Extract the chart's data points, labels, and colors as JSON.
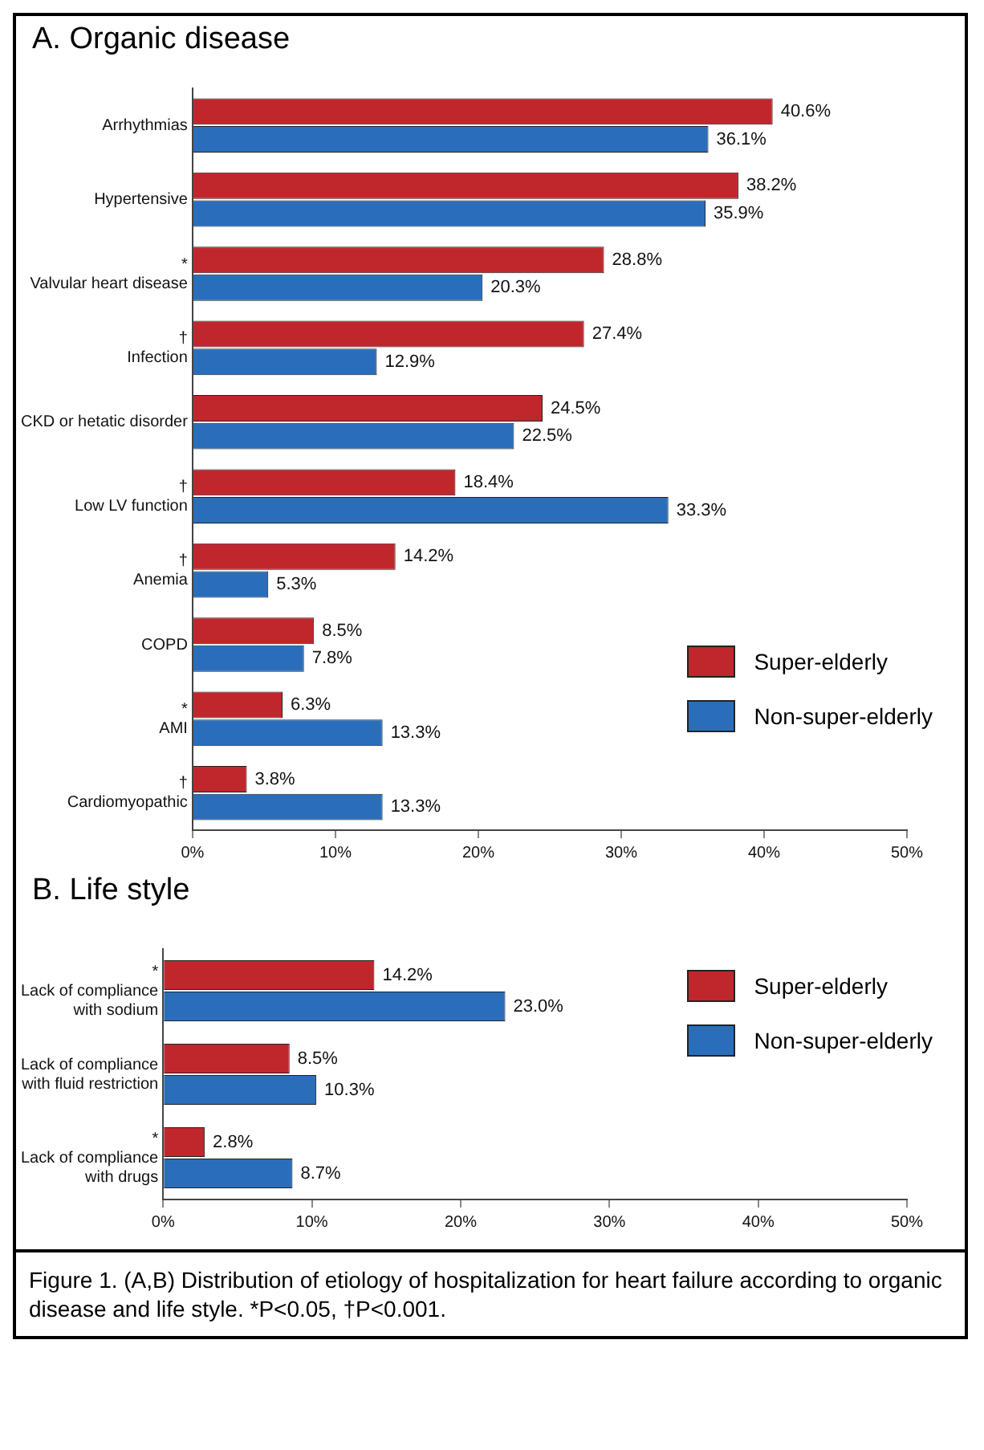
{
  "chart_data": [
    {
      "type": "bar",
      "title": "A. Organic disease",
      "orientation": "horizontal",
      "categories": [
        "Arrhythmias",
        "Hypertensive",
        "*\nValvular heart disease",
        "†\nInfection",
        "CKD or hetatic disorder",
        "†\nLow LV function",
        "†\nAnemia",
        "COPD",
        "*\nAMI",
        "†\nCardiomyopathic"
      ],
      "series": [
        {
          "name": "Super-elderly",
          "color": "#c0272d",
          "values": [
            40.6,
            38.2,
            28.8,
            27.4,
            24.5,
            18.4,
            14.2,
            8.5,
            6.3,
            3.8
          ],
          "value_labels": [
            "40.6%",
            "38.2%",
            "28.8%",
            "27.4%",
            "24.5%",
            "18.4%",
            "14.2%",
            "8.5%",
            "6.3%",
            "3.8%"
          ]
        },
        {
          "name": "Non-super-elderly",
          "color": "#2a6ebb",
          "values": [
            36.1,
            35.9,
            20.3,
            12.9,
            22.5,
            33.3,
            5.3,
            7.8,
            13.3,
            13.3
          ],
          "value_labels": [
            "36.1%",
            "35.9%",
            "20.3%",
            "12.9%",
            "22.5%",
            "33.3%",
            "5.3%",
            "7.8%",
            "13.3%",
            "13.3%"
          ]
        }
      ],
      "xlim": [
        0,
        50
      ],
      "xticks": [
        {
          "value": 0,
          "label": "0%"
        },
        {
          "value": 10,
          "label": "10%"
        },
        {
          "value": 20,
          "label": "20%"
        },
        {
          "value": 30,
          "label": "30%"
        },
        {
          "value": 40,
          "label": "40%"
        },
        {
          "value": 50,
          "label": "50%"
        }
      ],
      "grid": false,
      "legend": "bottom right"
    },
    {
      "type": "bar",
      "title": "B. Life style",
      "orientation": "horizontal",
      "categories": [
        "*\nLack of compliance\nwith sodium",
        "Lack of compliance\nwith fluid restriction",
        "*\nLack of compliance\nwith drugs"
      ],
      "series": [
        {
          "name": "Super-elderly",
          "color": "#c0272d",
          "values": [
            14.2,
            8.5,
            2.8
          ],
          "value_labels": [
            "14.2%",
            "8.5%",
            "2.8%"
          ]
        },
        {
          "name": "Non-super-elderly",
          "color": "#2a6ebb",
          "values": [
            23.0,
            10.3,
            8.7
          ],
          "value_labels": [
            "23.0%",
            "10.3%",
            "8.7%"
          ]
        }
      ],
      "xlim": [
        0,
        50
      ],
      "xticks": [
        {
          "value": 0,
          "label": "0%"
        },
        {
          "value": 10,
          "label": "10%"
        },
        {
          "value": 20,
          "label": "20%"
        },
        {
          "value": 30,
          "label": "30%"
        },
        {
          "value": 40,
          "label": "40%"
        },
        {
          "value": 50,
          "label": "50%"
        }
      ],
      "grid": false,
      "legend": "right",
      "annotations": [
        "Figure 1. (A,B) Distribution of etiology of hospitalization for heart failure according to organic disease and life style. *P<0.05, †P<0.001."
      ]
    }
  ]
}
